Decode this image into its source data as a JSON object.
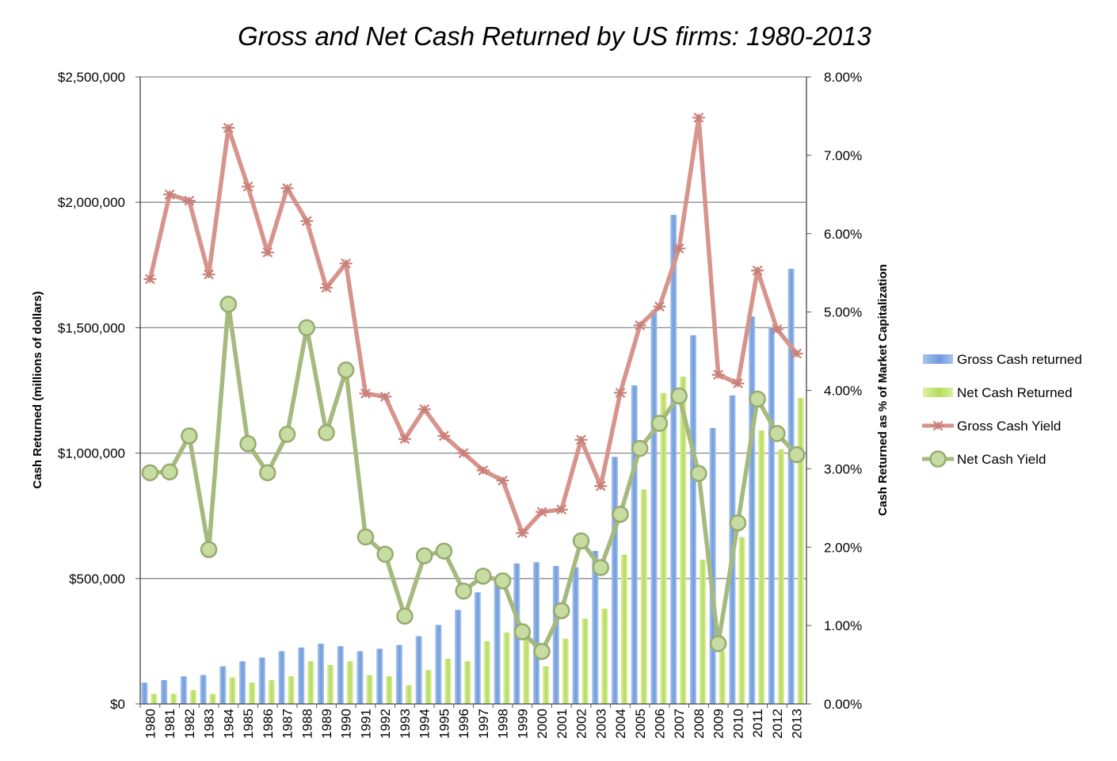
{
  "chart_data": {
    "type": "bar",
    "title": "Gross and Net Cash Returned by US firms: 1980-2013",
    "categories": [
      "1980",
      "1981",
      "1982",
      "1983",
      "1984",
      "1985",
      "1986",
      "1987",
      "1988",
      "1989",
      "1990",
      "1991",
      "1992",
      "1993",
      "1994",
      "1995",
      "1996",
      "1997",
      "1998",
      "1999",
      "2000",
      "2001",
      "2002",
      "2003",
      "2004",
      "2005",
      "2006",
      "2007",
      "2008",
      "2009",
      "2010",
      "2011",
      "2012",
      "2013"
    ],
    "xlabel": "",
    "ylabel": "Cash Returned (millions of dollars)",
    "y2label": "Cash Returned as % of Market Capitalization",
    "ylim": [
      0,
      2500000
    ],
    "y2lim": [
      0,
      8
    ],
    "y_ticks": [
      {
        "value": 0,
        "label": "$0"
      },
      {
        "value": 500000,
        "label": "$500,000"
      },
      {
        "value": 1000000,
        "label": "$1,000,000"
      },
      {
        "value": 1500000,
        "label": "$1,500,000"
      },
      {
        "value": 2000000,
        "label": "$2,000,000"
      },
      {
        "value": 2500000,
        "label": "$2,500,000"
      }
    ],
    "y2_ticks": [
      {
        "value": 0,
        "label": "0.00%"
      },
      {
        "value": 1,
        "label": "1.00%"
      },
      {
        "value": 2,
        "label": "2.00%"
      },
      {
        "value": 3,
        "label": "3.00%"
      },
      {
        "value": 4,
        "label": "4.00%"
      },
      {
        "value": 5,
        "label": "5.00%"
      },
      {
        "value": 6,
        "label": "6.00%"
      },
      {
        "value": 7,
        "label": "7.00%"
      },
      {
        "value": 8,
        "label": "8.00%"
      }
    ],
    "grid": true,
    "legend_position": "right",
    "series": [
      {
        "name": "Gross Cash returned",
        "kind": "bar",
        "axis": "left",
        "color": "#6f9bdc",
        "values": [
          85000,
          95000,
          110000,
          115000,
          150000,
          170000,
          185000,
          210000,
          225000,
          240000,
          230000,
          210000,
          220000,
          235000,
          270000,
          315000,
          375000,
          445000,
          490000,
          560000,
          565000,
          550000,
          545000,
          610000,
          985000,
          1270000,
          1570000,
          1950000,
          1470000,
          1100000,
          1230000,
          1545000,
          1500000,
          1735000
        ]
      },
      {
        "name": "Net Cash Returned",
        "kind": "bar",
        "axis": "left",
        "color": "#b4dc5a",
        "values": [
          40000,
          40000,
          55000,
          40000,
          105000,
          85000,
          95000,
          110000,
          170000,
          155000,
          170000,
          115000,
          110000,
          75000,
          135000,
          180000,
          170000,
          250000,
          285000,
          260000,
          150000,
          260000,
          340000,
          380000,
          595000,
          855000,
          1240000,
          1305000,
          575000,
          210000,
          665000,
          1090000,
          1015000,
          1220000
        ]
      },
      {
        "name": "Gross Cash Yield",
        "kind": "line",
        "axis": "right",
        "color": "#d7948d",
        "marker": "star",
        "values": [
          5.42,
          6.5,
          6.42,
          5.48,
          7.35,
          6.6,
          5.76,
          6.58,
          6.16,
          5.31,
          5.62,
          3.96,
          3.92,
          3.38,
          3.76,
          3.42,
          3.2,
          2.98,
          2.85,
          2.18,
          2.45,
          2.48,
          3.37,
          2.78,
          3.97,
          4.83,
          5.07,
          5.81,
          7.48,
          4.2,
          4.09,
          5.53,
          4.78,
          4.47
        ]
      },
      {
        "name": "Net Cash Yield",
        "kind": "line",
        "axis": "right",
        "color": "#a6b97e",
        "marker": "circle",
        "values": [
          2.95,
          2.96,
          3.42,
          1.97,
          5.1,
          3.32,
          2.95,
          3.44,
          4.8,
          3.46,
          4.26,
          2.13,
          1.91,
          1.12,
          1.89,
          1.95,
          1.44,
          1.63,
          1.57,
          0.92,
          0.67,
          1.19,
          2.08,
          1.74,
          2.42,
          3.26,
          3.58,
          3.93,
          2.94,
          0.77,
          2.31,
          3.89,
          3.45,
          3.18
        ]
      }
    ]
  }
}
